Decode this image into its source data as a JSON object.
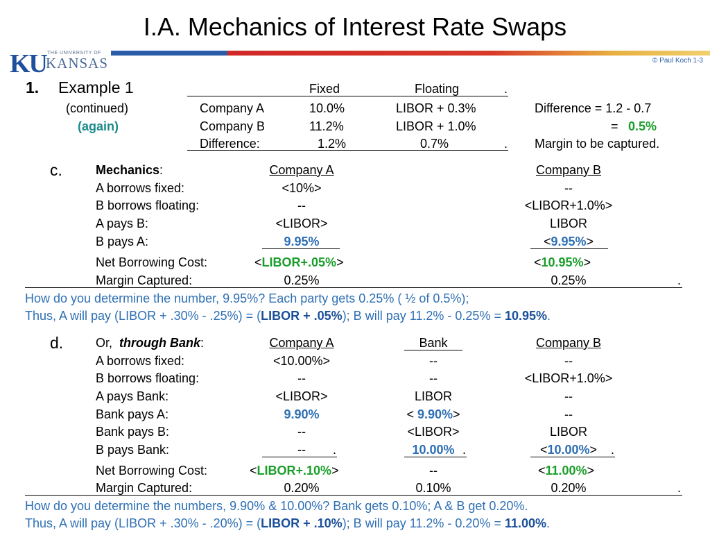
{
  "title": "I.A.  Mechanics of Interest Rate Swaps",
  "logo": {
    "univ": "THE UNIVERSITY OF",
    "ku": "KU",
    "kansas": "KANSAS"
  },
  "copyright": "© Paul Koch 1-3",
  "colors": {
    "green": "#1a9e2a",
    "blue": "#2e6fb4",
    "teal": "#1a8a8a",
    "brand_blue": "#2a5ca8",
    "brand_red": "#d02828"
  },
  "example": {
    "num": "1.",
    "label": "Example 1",
    "continued": "(continued)",
    "again": "(again)",
    "hdr_fixed": "Fixed",
    "hdr_floating": "Floating",
    "hdr_dot": ".",
    "rows": [
      {
        "name": "Company A",
        "fixed": "10.0%",
        "floating": "LIBOR + 0.3%"
      },
      {
        "name": "Company B",
        "fixed": "11.2%",
        "floating": "LIBOR + 1.0%"
      },
      {
        "name": "Difference:",
        "fixed": "1.2%",
        "floating": "0.7%"
      }
    ],
    "diff_label": "Difference  =  1.2 - 0.7",
    "eq": "=",
    "eq_val": "0.5%",
    "margin_note": "Margin to be captured."
  },
  "c": {
    "letter": "c.",
    "heading": "Mechanics",
    "colon": ":",
    "col_a": "Company A",
    "col_b": "Company B",
    "rows": [
      {
        "label": "A borrows fixed:",
        "a": "<10%>",
        "b": "--"
      },
      {
        "label": "B borrows floating:",
        "a": "--",
        "b": "<LIBOR+1.0%>"
      },
      {
        "label": "A pays B:",
        "a": "<LIBOR>",
        "b": "LIBOR"
      },
      {
        "label": "B pays A:",
        "a": "9.95%",
        "b_pre": "<",
        "b": "9.95%",
        "b_post": ">"
      }
    ],
    "nbc_label": "Net Borrowing Cost:",
    "nbc_a": "LIBOR+.05%",
    "nbc_b": "10.95%",
    "mc_label": "Margin Captured:",
    "mc_a": "0.25%",
    "mc_b": "0.25%",
    "note1": "How do you determine the number,  9.95%?   Each party gets 0.25% ( ½ of 0.5%);",
    "note2_pre": "Thus,  A will pay  (LIBOR + .30% - .25%) = (",
    "note2_bold": "LIBOR + .05%",
    "note2_mid": ");      B will pay  11.2% - 0.25% =  ",
    "note2_val": "10.95%",
    "note2_end": "."
  },
  "d": {
    "letter": "d.",
    "or": "Or,",
    "heading": "through Bank",
    "colon": ":",
    "col_a": "Company A",
    "col_bank": "Bank",
    "col_b": "Company B",
    "rows": [
      {
        "label": "A borrows fixed:",
        "a": "<10.00%>",
        "bank": "--",
        "b": "--"
      },
      {
        "label": "B borrows floating:",
        "a": "--",
        "bank": "--",
        "b": "<LIBOR+1.0%>"
      },
      {
        "label": "A pays Bank:",
        "a": "<LIBOR>",
        "bank": "LIBOR",
        "b": "--"
      },
      {
        "label": "Bank pays A:",
        "a": "9.90%",
        "bank_pre": "< ",
        "bank": "9.90%",
        "bank_post": ">",
        "b": "--"
      },
      {
        "label": "Bank pays B:",
        "a": "--",
        "bank": "<LIBOR>",
        "b": "LIBOR"
      },
      {
        "label": "B pays Bank:",
        "a": "--",
        "bank": "10.00%",
        "b_pre": "<",
        "b": "10.00%",
        "b_post": ">"
      }
    ],
    "nbc_label": "Net Borrowing Cost:",
    "nbc_a": "LIBOR+.10%",
    "nbc_bank": "--",
    "nbc_b": "11.00%",
    "mc_label": "Margin Captured:",
    "mc_a": "0.20%",
    "mc_bank": "0.10%",
    "mc_b": "0.20%",
    "note1": "How do you determine the numbers,  9.90%  &  10.00%?   Bank gets  0.10%;   A & B  get  0.20%.",
    "note2_pre": "Thus,  A will pay  (LIBOR + .30% - .20%)  =  (",
    "note2_bold": "LIBOR + .10%",
    "note2_mid": ");    B will pay  11.2% - 0.20% =  ",
    "note2_val": "11.00%",
    "note2_end": "."
  }
}
